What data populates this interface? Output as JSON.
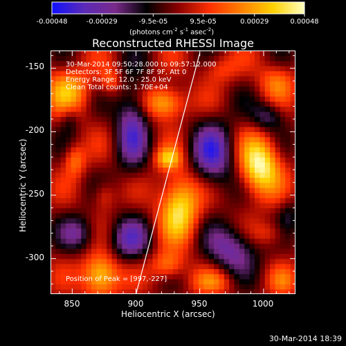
{
  "colorbar": {
    "tick_labels": [
      "-0.00048",
      "-0.00029",
      "-9.5e-05",
      "9.5e-05",
      "0.00029",
      "0.00048"
    ],
    "tick_values": [
      -0.00048,
      -0.00029,
      -9.5e-05,
      9.5e-05,
      0.00029,
      0.00048
    ],
    "units_text": "(photons cm",
    "units_exp1": "-2",
    "units_mid": " s",
    "units_exp2": "-1",
    "units_end": " asec",
    "units_exp3": "-2",
    "units_close": ")",
    "colors": [
      "#1010ff",
      "#5a2ab8",
      "#7a2a8a",
      "#000000",
      "#8a0000",
      "#ff3000",
      "#ff8000",
      "#ffd000",
      "#ffffc0"
    ]
  },
  "title": "Reconstructed RHESSI Image",
  "info": {
    "time_range": "30-Mar-2014 09:50:28.000 to 09:57:12.000",
    "detectors": "Detectors: 3F 5F 6F 7F 8F 9F, Att 0",
    "energy": "Energy Range: 12.0 - 25.0 keV",
    "clean": "Clean     Total counts: 1.70E+04",
    "peak": "Position of Peak = [997,-227]"
  },
  "footer": "30-Mar-2014 18:39",
  "chart_data": {
    "type": "heatmap",
    "title": "Reconstructed RHESSI Image",
    "xlabel": "Heliocentric X (arcsec)",
    "ylabel": "Heliocentric Y (arcsec)",
    "xlim": [
      833,
      1025
    ],
    "ylim": [
      -328,
      -136
    ],
    "x_ticks": [
      850,
      900,
      950,
      1000
    ],
    "y_ticks": [
      -150,
      -200,
      -250,
      -300
    ],
    "limb_line": {
      "x": [
        900,
        950
      ],
      "y": [
        -328,
        -138
      ]
    },
    "peak": {
      "x": 997,
      "y": -227
    },
    "blobs": [
      {
        "x": 997,
        "y": -227,
        "sx": 11,
        "sy": 16,
        "v": 0.00048
      },
      {
        "x": 934,
        "y": -258,
        "sx": 11,
        "sy": 19,
        "v": 0.00042
      },
      {
        "x": 872,
        "y": -313,
        "sx": 10,
        "sy": 12,
        "v": 0.00043
      },
      {
        "x": 923,
        "y": -177,
        "sx": 11,
        "sy": 9,
        "v": 0.00036
      },
      {
        "x": 925,
        "y": -221,
        "sx": 7,
        "sy": 6,
        "v": 0.0003
      },
      {
        "x": 847,
        "y": -167,
        "sx": 13,
        "sy": 13,
        "v": 0.00028
      },
      {
        "x": 852,
        "y": -222,
        "sx": 6,
        "sy": 9,
        "v": 0.00022
      },
      {
        "x": 880,
        "y": -160,
        "sx": 6,
        "sy": 8,
        "v": 0.00018
      },
      {
        "x": 875,
        "y": -250,
        "sx": 6,
        "sy": 8,
        "v": 0.00015
      },
      {
        "x": 925,
        "y": -305,
        "sx": 9,
        "sy": 8,
        "v": 0.00025
      },
      {
        "x": 965,
        "y": -150,
        "sx": 10,
        "sy": 8,
        "v": 0.00015
      },
      {
        "x": 1010,
        "y": -160,
        "sx": 10,
        "sy": 10,
        "v": 0.0002
      },
      {
        "x": 1005,
        "y": -280,
        "sx": 10,
        "sy": 7,
        "v": 0.00015
      },
      {
        "x": 960,
        "y": -318,
        "sx": 12,
        "sy": 7,
        "v": 0.00018
      },
      {
        "x": 1015,
        "y": -318,
        "sx": 8,
        "sy": 8,
        "v": 0.00014
      },
      {
        "x": 960,
        "y": -218,
        "sx": 12,
        "sy": 18,
        "v": -0.00035
      },
      {
        "x": 897,
        "y": -195,
        "sx": 9,
        "sy": 25,
        "v": -0.00032
      },
      {
        "x": 895,
        "y": -285,
        "sx": 11,
        "sy": 12,
        "v": -0.00028
      },
      {
        "x": 855,
        "y": -280,
        "sx": 10,
        "sy": 10,
        "v": -0.00022
      },
      {
        "x": 1003,
        "y": -188,
        "sx": 9,
        "sy": 8,
        "v": -0.00022
      },
      {
        "x": 975,
        "y": -292,
        "sx": 14,
        "sy": 13,
        "v": -0.0003
      },
      {
        "x": 848,
        "y": -190,
        "sx": 5,
        "sy": 8,
        "v": -0.00012
      },
      {
        "x": 1020,
        "y": -265,
        "sx": 6,
        "sy": 10,
        "v": -0.00012
      }
    ]
  }
}
